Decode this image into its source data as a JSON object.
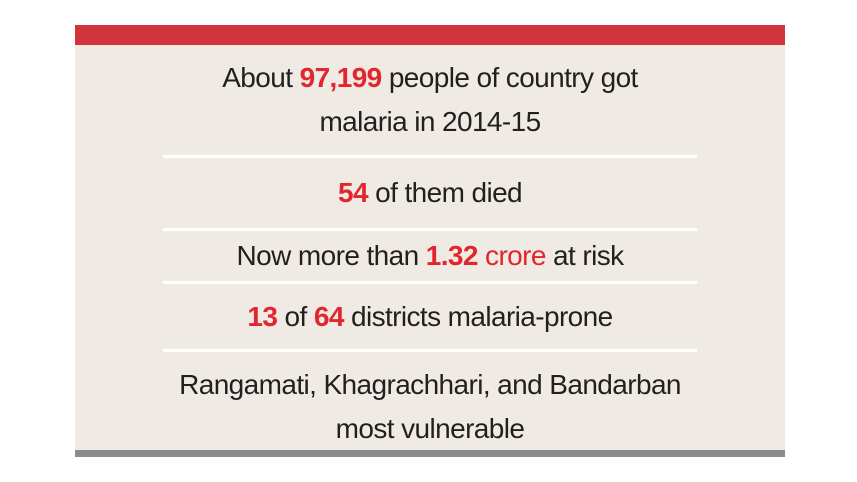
{
  "items": [
    {
      "lines": [
        [
          {
            "text": "About ",
            "color": "#231f20",
            "weight": "normal"
          },
          {
            "text": "97,199",
            "color": "#e1262d",
            "weight": "bold"
          },
          {
            "text": " people of country got",
            "color": "#231f20",
            "weight": "normal"
          }
        ],
        [
          {
            "text": "malaria in 2014-15",
            "color": "#231f20",
            "weight": "normal"
          }
        ]
      ]
    },
    {
      "lines": [
        [
          {
            "text": "54",
            "color": "#e1262d",
            "weight": "bold"
          },
          {
            "text": " of them died",
            "color": "#231f20",
            "weight": "normal"
          }
        ]
      ]
    },
    {
      "lines": [
        [
          {
            "text": "Now more than ",
            "color": "#231f20",
            "weight": "normal"
          },
          {
            "text": "1.32",
            "color": "#e1262d",
            "weight": "bold"
          },
          {
            "text": " crore",
            "color": "#e1262d",
            "weight": "normal"
          },
          {
            "text": " at risk",
            "color": "#231f20",
            "weight": "normal"
          }
        ]
      ]
    },
    {
      "lines": [
        [
          {
            "text": "13",
            "color": "#e1262d",
            "weight": "bold"
          },
          {
            "text": " of ",
            "color": "#231f20",
            "weight": "normal"
          },
          {
            "text": "64",
            "color": "#e1262d",
            "weight": "bold"
          },
          {
            "text": " districts malaria-prone",
            "color": "#231f20",
            "weight": "normal"
          }
        ]
      ]
    },
    {
      "lines": [
        [
          {
            "text": "Rangamati, Khagrachhari, and Bandarban",
            "color": "#231f20",
            "weight": "normal"
          }
        ],
        [
          {
            "text": "most vulnerable",
            "color": "#231f20",
            "weight": "normal"
          }
        ]
      ]
    }
  ]
}
